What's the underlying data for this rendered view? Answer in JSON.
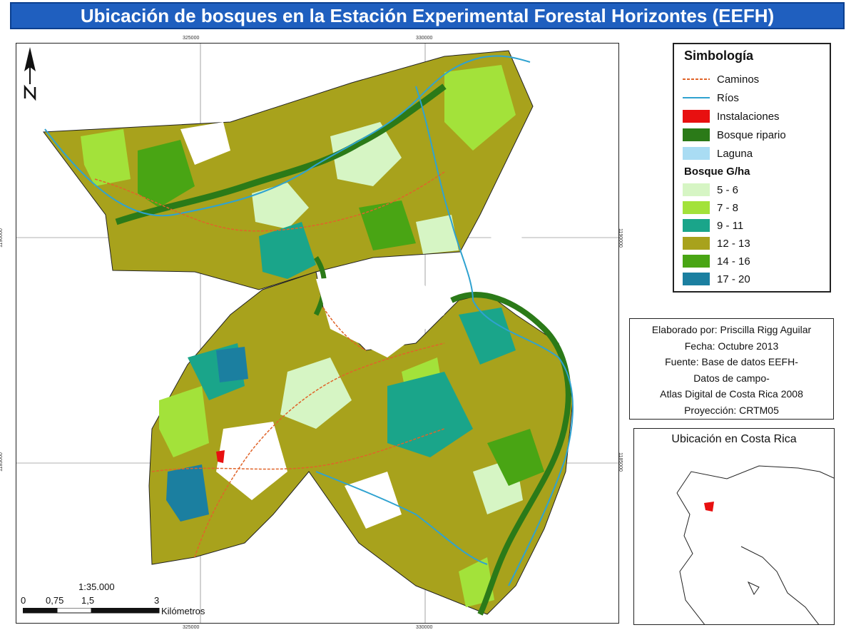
{
  "title": "Ubicación de bosques en la Estación Experimental Forestal Horizontes (EEFH)",
  "map": {
    "coords_top": [
      "325000",
      "330000"
    ],
    "coords_bottom": [
      "325000",
      "330000"
    ],
    "coords_left": [
      "1190000",
      "1185000"
    ],
    "coords_right": [
      "1190000",
      "1185000"
    ],
    "scale_ratio": "1:35.000",
    "scale_ticks": [
      "0",
      "0,75",
      "1,5",
      "3"
    ],
    "scale_unit": "Kilómetros"
  },
  "legend": {
    "title": "Simbología",
    "items": [
      {
        "label": "Caminos",
        "kind": "dashed-line",
        "color": "#e0642a"
      },
      {
        "label": "Ríos",
        "kind": "line",
        "color": "#2fa2d0"
      },
      {
        "label": "Instalaciones",
        "kind": "fill",
        "color": "#e81010"
      },
      {
        "label": "Bosque ripario",
        "kind": "fill",
        "color": "#2b7a18"
      },
      {
        "label": "Laguna",
        "kind": "fill",
        "color": "#a9dcf3"
      }
    ],
    "subtitle": "Bosque G/ha",
    "classes": [
      {
        "label": "5 - 6",
        "color": "#d6f5c4"
      },
      {
        "label": "7 - 8",
        "color": "#a3e23a"
      },
      {
        "label": "9 - 11",
        "color": "#1aa58a"
      },
      {
        "label": "12 - 13",
        "color": "#a8a21c"
      },
      {
        "label": "14 - 16",
        "color": "#49a514"
      },
      {
        "label": "17 - 20",
        "color": "#1b7fa0"
      }
    ]
  },
  "credits": {
    "lines": [
      "Elaborado por: Priscilla Rigg Aguilar",
      "Fecha: Octubre 2013",
      "Fuente: Base de datos EEFH-",
      "Datos de campo-",
      "Atlas Digital de Costa Rica 2008",
      "Proyección: CRTM05"
    ]
  },
  "inset": {
    "title": "Ubicación en Costa Rica"
  }
}
